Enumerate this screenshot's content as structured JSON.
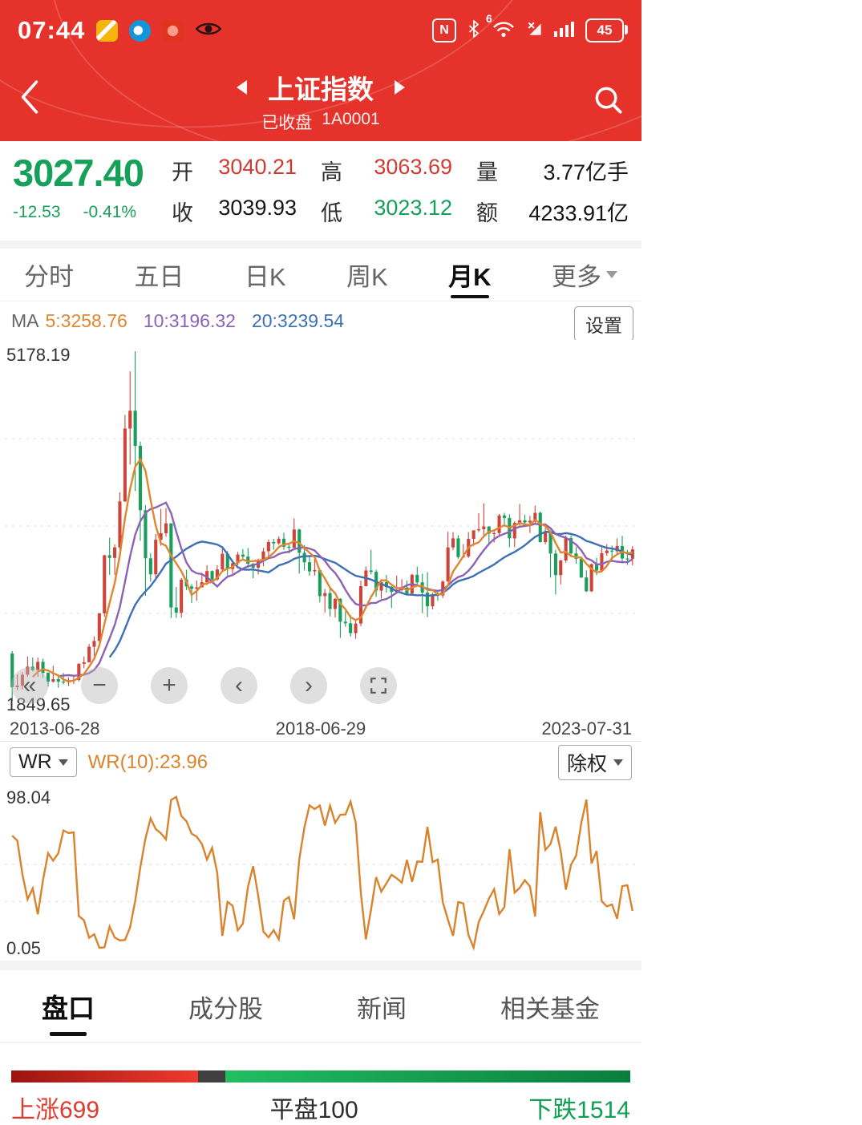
{
  "status_bar": {
    "time": "07:44",
    "battery": "45"
  },
  "icons": {
    "nfc": "N",
    "wifi_badge": "6"
  },
  "header": {
    "title": "上证指数",
    "status": "已收盘",
    "code": "1A0001"
  },
  "quote": {
    "price": "3027.40",
    "change": "-12.53",
    "change_pct": "-0.41%",
    "fields": [
      {
        "label": "开",
        "value": "3040.21"
      },
      {
        "label": "高",
        "value": "3063.69"
      },
      {
        "label": "量",
        "value": "3.77亿手"
      },
      {
        "label": "收",
        "value": "3039.93"
      },
      {
        "label": "低",
        "value": "3023.12"
      },
      {
        "label": "额",
        "value": "4233.91亿"
      }
    ]
  },
  "period_tabs": [
    {
      "label": "分时"
    },
    {
      "label": "五日"
    },
    {
      "label": "日K"
    },
    {
      "label": "周K"
    },
    {
      "label": "月K",
      "active": true
    },
    {
      "label": "更多"
    }
  ],
  "ma": {
    "prefix": "MA",
    "ma5": "5:3258.76",
    "ma10": "10:3196.32",
    "ma20": "20:3239.54",
    "settings_label": "设置"
  },
  "kline": {
    "y_max_label": "5178.19",
    "y_min_label": "1849.65"
  },
  "chart_toolbar": [
    {
      "name": "pan-left",
      "glyph": "«"
    },
    {
      "name": "zoom-out",
      "glyph": "−"
    },
    {
      "name": "zoom-in",
      "glyph": "+"
    },
    {
      "name": "step-back",
      "glyph": "‹"
    },
    {
      "name": "step-forward",
      "glyph": "›"
    },
    {
      "name": "fullscreen"
    }
  ],
  "indicator": {
    "selector_label": "WR",
    "value_text": "WR(10):23.96",
    "exrights_label": "除权",
    "y_max_label": "98.04",
    "y_min_label": "0.05"
  },
  "bottom_tabs": [
    {
      "label": "盘口",
      "active": true
    },
    {
      "label": "成分股"
    },
    {
      "label": "新闻"
    },
    {
      "label": "相关基金"
    }
  ],
  "market_breadth": {
    "up_text": "上涨699",
    "up": 699,
    "flat_text": "平盘100",
    "flat": 100,
    "down_text": "下跌1514",
    "down": 1514
  },
  "colors": {
    "up": "#cf443a",
    "down": "#1a9e5c",
    "ma5": "#e0862f",
    "ma10": "#8d62b5",
    "ma20": "#3c70b5",
    "wr": "#d9832c",
    "accent_red": "#e5332c",
    "price_green": "#16a05a"
  },
  "chart_data": {
    "type": "candlestick",
    "title": "上证指数 月K",
    "x_labels": [
      "2013-06-28",
      "2018-06-29",
      "2023-07-31"
    ],
    "price_range": [
      1849.65,
      5178.19
    ],
    "overlays": [
      {
        "name": "MA5",
        "period": 5,
        "value": 3258.76
      },
      {
        "name": "MA10",
        "period": 10,
        "value": 3196.32
      },
      {
        "name": "MA20",
        "period": 20,
        "value": 3239.54
      }
    ],
    "indicator": {
      "type": "WR",
      "period": 10,
      "last_value": 23.96,
      "range": [
        0.05,
        98.04
      ]
    },
    "ohlc": [
      [
        2300,
        2324,
        1850,
        1979
      ],
      [
        1979,
        2101,
        1950,
        1994
      ],
      [
        1994,
        2123,
        1960,
        2098
      ],
      [
        2098,
        2270,
        2080,
        2175
      ],
      [
        2175,
        2261,
        2130,
        2141
      ],
      [
        2141,
        2260,
        2078,
        2221
      ],
      [
        2221,
        2252,
        2068,
        2116
      ],
      [
        2116,
        2121,
        1984,
        2033
      ],
      [
        2033,
        2184,
        2022,
        2056
      ],
      [
        2056,
        2085,
        1974,
        2033
      ],
      [
        2033,
        2115,
        2007,
        2026
      ],
      [
        2026,
        2073,
        1991,
        2039
      ],
      [
        2039,
        2086,
        2010,
        2048
      ],
      [
        2048,
        2206,
        2033,
        2202
      ],
      [
        2202,
        2270,
        2160,
        2217
      ],
      [
        2217,
        2391,
        2216,
        2364
      ],
      [
        2364,
        2463,
        2279,
        2420
      ],
      [
        2420,
        2683,
        2400,
        2683
      ],
      [
        2683,
        3239,
        2650,
        3235
      ],
      [
        3235,
        3404,
        3049,
        3210
      ],
      [
        3210,
        3338,
        3049,
        3310
      ],
      [
        3310,
        3835,
        3198,
        3748
      ],
      [
        3748,
        4572,
        3742,
        4442
      ],
      [
        4442,
        4986,
        4099,
        4612
      ],
      [
        4612,
        5178,
        3847,
        4277
      ],
      [
        4277,
        4318,
        3373,
        3664
      ],
      [
        3664,
        3714,
        2850,
        3206
      ],
      [
        3206,
        3257,
        2983,
        3053
      ],
      [
        3053,
        3439,
        3016,
        3383
      ],
      [
        3383,
        3678,
        3327,
        3445
      ],
      [
        3445,
        3685,
        3412,
        3539
      ],
      [
        3539,
        3539,
        2638,
        2738
      ],
      [
        2738,
        2934,
        2639,
        2688
      ],
      [
        2688,
        3018,
        2641,
        3004
      ],
      [
        3004,
        3097,
        2905,
        2938
      ],
      [
        2938,
        2960,
        2781,
        2917
      ],
      [
        2917,
        2995,
        2803,
        2930
      ],
      [
        2930,
        3069,
        2928,
        2979
      ],
      [
        2979,
        3140,
        2950,
        3085
      ],
      [
        3085,
        3092,
        2969,
        3005
      ],
      [
        3005,
        3140,
        2992,
        3100
      ],
      [
        3100,
        3301,
        3093,
        3250
      ],
      [
        3250,
        3276,
        3043,
        3104
      ],
      [
        3104,
        3173,
        3044,
        3159
      ],
      [
        3159,
        3268,
        3140,
        3242
      ],
      [
        3242,
        3295,
        3188,
        3223
      ],
      [
        3223,
        3305,
        3116,
        3155
      ],
      [
        3155,
        3163,
        3016,
        3117
      ],
      [
        3117,
        3204,
        3052,
        3192
      ],
      [
        3192,
        3306,
        3131,
        3273
      ],
      [
        3273,
        3386,
        3230,
        3361
      ],
      [
        3361,
        3392,
        3287,
        3349
      ],
      [
        3349,
        3415,
        3334,
        3393
      ],
      [
        3393,
        3450,
        3288,
        3317
      ],
      [
        3317,
        3340,
        3254,
        3307
      ],
      [
        3307,
        3587,
        3307,
        3481
      ],
      [
        3481,
        3488,
        3062,
        3259
      ],
      [
        3259,
        3333,
        3091,
        3169
      ],
      [
        3169,
        3219,
        3041,
        3082
      ],
      [
        3082,
        3220,
        3041,
        3095
      ],
      [
        3095,
        3102,
        2786,
        2847
      ],
      [
        2847,
        2915,
        2691,
        2876
      ],
      [
        2876,
        2916,
        2653,
        2725
      ],
      [
        2725,
        2827,
        2644,
        2821
      ],
      [
        2821,
        2827,
        2449,
        2603
      ],
      [
        2603,
        2703,
        2555,
        2588
      ],
      [
        2588,
        2666,
        2462,
        2494
      ],
      [
        2494,
        2618,
        2440,
        2585
      ],
      [
        2585,
        2994,
        2559,
        2941
      ],
      [
        2941,
        3129,
        2938,
        3091
      ],
      [
        3091,
        3288,
        3052,
        3078
      ],
      [
        3078,
        3098,
        2838,
        2899
      ],
      [
        2899,
        3008,
        2822,
        2979
      ],
      [
        2979,
        3048,
        2880,
        2933
      ],
      [
        2933,
        2943,
        2733,
        2886
      ],
      [
        2886,
        3042,
        2875,
        2905
      ],
      [
        2905,
        3008,
        2891,
        2929
      ],
      [
        2929,
        2994,
        2857,
        2872
      ],
      [
        2872,
        3058,
        2857,
        3050
      ],
      [
        3050,
        3127,
        2955,
        2977
      ],
      [
        2977,
        3059,
        2685,
        2880
      ],
      [
        2880,
        3074,
        2647,
        2750
      ],
      [
        2750,
        2879,
        2721,
        2860
      ],
      [
        2860,
        2898,
        2802,
        2852
      ],
      [
        2852,
        2998,
        2828,
        2985
      ],
      [
        2985,
        3459,
        2984,
        3310
      ],
      [
        3310,
        3456,
        3283,
        3396
      ],
      [
        3396,
        3426,
        3202,
        3218
      ],
      [
        3218,
        3342,
        3209,
        3225
      ],
      [
        3225,
        3457,
        3209,
        3392
      ],
      [
        3392,
        3474,
        3325,
        3473
      ],
      [
        3473,
        3637,
        3456,
        3483
      ],
      [
        3483,
        3731,
        3422,
        3509
      ],
      [
        3509,
        3511,
        3328,
        3442
      ],
      [
        3442,
        3485,
        3357,
        3447
      ],
      [
        3447,
        3629,
        3418,
        3615
      ],
      [
        3615,
        3640,
        3514,
        3591
      ],
      [
        3591,
        3625,
        3312,
        3397
      ],
      [
        3397,
        3560,
        3313,
        3544
      ],
      [
        3544,
        3724,
        3518,
        3568
      ],
      [
        3568,
        3620,
        3518,
        3547
      ],
      [
        3547,
        3610,
        3448,
        3564
      ],
      [
        3564,
        3708,
        3539,
        3640
      ],
      [
        3640,
        3651,
        3356,
        3361
      ],
      [
        3361,
        3500,
        3340,
        3462
      ],
      [
        3462,
        3472,
        3023,
        3252
      ],
      [
        3252,
        3288,
        2863,
        3047
      ],
      [
        3047,
        3192,
        2958,
        3186
      ],
      [
        3186,
        3424,
        3165,
        3399
      ],
      [
        3399,
        3425,
        3228,
        3253
      ],
      [
        3253,
        3314,
        3155,
        3202
      ],
      [
        3202,
        3219,
        3019,
        3024
      ],
      [
        3024,
        3092,
        2885,
        2893
      ],
      [
        2893,
        3157,
        2885,
        3151
      ],
      [
        3151,
        3212,
        3045,
        3089
      ],
      [
        3089,
        3310,
        3073,
        3255
      ],
      [
        3255,
        3342,
        3229,
        3280
      ],
      [
        3280,
        3328,
        3180,
        3273
      ],
      [
        3273,
        3397,
        3236,
        3323
      ],
      [
        3323,
        3419,
        3159,
        3205
      ],
      [
        3205,
        3287,
        3144,
        3202
      ],
      [
        3202,
        3322,
        3140,
        3291
      ]
    ]
  }
}
